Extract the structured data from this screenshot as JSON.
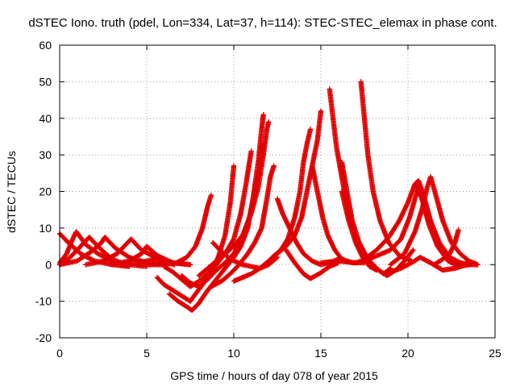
{
  "chart_data": {
    "type": "scatter",
    "title": "dSTEC Iono. truth (pdel, Lon=334, Lat=37, h=114): STEC-STEC_elemax in phase cont.",
    "xlabel": "GPS time / hours of day 078 of year 2015",
    "ylabel": "dSTEC  / TECUs",
    "xlim": [
      0,
      25
    ],
    "ylim": [
      -20,
      60
    ],
    "xticks": [
      0,
      5,
      10,
      15,
      20,
      25
    ],
    "yticks": [
      -20,
      -10,
      0,
      10,
      20,
      30,
      40,
      50,
      60
    ],
    "grid": true,
    "marker": "+",
    "marker_color": "#e00000",
    "arcs": [
      [
        [
          0.0,
          8.5
        ],
        [
          0.5,
          6.0
        ],
        [
          1.2,
          3.0
        ],
        [
          2.0,
          1.0
        ],
        [
          3.0,
          0.0
        ],
        [
          4.0,
          -0.5
        ]
      ],
      [
        [
          0.0,
          0.0
        ],
        [
          0.6,
          2.0
        ],
        [
          1.2,
          5.0
        ],
        [
          1.7,
          7.5
        ],
        [
          2.3,
          4.5
        ],
        [
          3.0,
          1.5
        ],
        [
          3.8,
          0.0
        ]
      ],
      [
        [
          0.0,
          0.5
        ],
        [
          0.4,
          3.0
        ],
        [
          0.7,
          6.5
        ],
        [
          0.95,
          9.0
        ],
        [
          1.5,
          5.5
        ],
        [
          2.2,
          3.0
        ],
        [
          3.0,
          1.0
        ],
        [
          4.0,
          0.0
        ],
        [
          5.0,
          -0.5
        ]
      ],
      [
        [
          0.0,
          0.0
        ],
        [
          1.0,
          1.0
        ],
        [
          1.8,
          3.5
        ],
        [
          2.4,
          6.0
        ],
        [
          2.6,
          7.5
        ],
        [
          3.2,
          4.5
        ],
        [
          4.0,
          2.0
        ],
        [
          5.0,
          0.5
        ],
        [
          6.0,
          0.0
        ]
      ],
      [
        [
          1.5,
          0.0
        ],
        [
          2.5,
          1.0
        ],
        [
          3.3,
          3.0
        ],
        [
          3.8,
          5.5
        ],
        [
          4.1,
          7.0
        ],
        [
          4.7,
          4.0
        ],
        [
          5.5,
          2.0
        ],
        [
          6.5,
          0.5
        ],
        [
          7.5,
          0.0
        ]
      ],
      [
        [
          3.0,
          0.0
        ],
        [
          4.0,
          1.0
        ],
        [
          4.7,
          3.0
        ],
        [
          5.0,
          5.0
        ],
        [
          5.6,
          2.5
        ],
        [
          6.5,
          0.5
        ],
        [
          7.5,
          0.0
        ]
      ],
      [
        [
          3.5,
          0.0
        ],
        [
          4.5,
          0.5
        ],
        [
          5.5,
          1.5
        ],
        [
          6.2,
          0.5
        ],
        [
          6.6,
          0.0
        ]
      ],
      [
        [
          5.0,
          0.0
        ],
        [
          5.8,
          0.0
        ],
        [
          6.7,
          0.5
        ],
        [
          7.3,
          2.0
        ],
        [
          7.8,
          5.0
        ],
        [
          8.2,
          10.0
        ],
        [
          8.5,
          16.0
        ],
        [
          8.7,
          19.0
        ]
      ],
      [
        [
          5.6,
          -3.5
        ],
        [
          6.0,
          -5.5
        ],
        [
          6.5,
          -7.0
        ],
        [
          7.0,
          -8.5
        ],
        [
          7.5,
          -10.0
        ],
        [
          7.8,
          -8.0
        ],
        [
          8.2,
          -5.5
        ],
        [
          8.7,
          -2.0
        ],
        [
          9.1,
          2.0
        ],
        [
          9.5,
          8.0
        ],
        [
          9.8,
          17.0
        ],
        [
          10.0,
          27.0
        ]
      ],
      [
        [
          6.0,
          -0.5
        ],
        [
          6.5,
          -2.0
        ],
        [
          7.0,
          -4.0
        ],
        [
          7.5,
          -6.0
        ],
        [
          8.0,
          -4.5
        ],
        [
          8.5,
          -2.5
        ],
        [
          9.0,
          0.0
        ],
        [
          9.5,
          3.0
        ],
        [
          10.0,
          7.0
        ],
        [
          10.4,
          14.0
        ],
        [
          10.7,
          22.0
        ],
        [
          10.9,
          28.0
        ],
        [
          11.0,
          31.0
        ]
      ],
      [
        [
          6.3,
          -8.0
        ],
        [
          6.8,
          -10.0
        ],
        [
          7.3,
          -11.5
        ],
        [
          7.6,
          -12.5
        ],
        [
          8.0,
          -10.5
        ],
        [
          8.5,
          -7.0
        ],
        [
          9.0,
          -4.0
        ],
        [
          9.5,
          -1.0
        ],
        [
          10.0,
          2.0
        ],
        [
          10.4,
          5.0
        ],
        [
          10.8,
          10.0
        ],
        [
          11.1,
          18.0
        ],
        [
          11.4,
          28.0
        ],
        [
          11.6,
          37.0
        ],
        [
          11.7,
          41.0
        ]
      ],
      [
        [
          7.0,
          -3.0
        ],
        [
          7.5,
          -5.0
        ],
        [
          8.0,
          -6.0
        ],
        [
          8.5,
          -4.0
        ],
        [
          9.0,
          -1.5
        ],
        [
          9.5,
          0.5
        ],
        [
          10.0,
          3.0
        ],
        [
          10.5,
          7.0
        ],
        [
          10.9,
          13.0
        ],
        [
          11.2,
          20.0
        ],
        [
          11.5,
          27.0
        ],
        [
          11.7,
          33.0
        ]
      ],
      [
        [
          8.0,
          -3.0
        ],
        [
          8.5,
          -1.0
        ],
        [
          9.0,
          1.0
        ],
        [
          9.5,
          3.0
        ],
        [
          10.0,
          5.0
        ],
        [
          10.5,
          8.0
        ],
        [
          11.0,
          14.0
        ],
        [
          11.4,
          21.0
        ],
        [
          11.7,
          30.0
        ],
        [
          11.9,
          37.0
        ],
        [
          12.0,
          39.0
        ]
      ],
      [
        [
          8.7,
          -6.0
        ],
        [
          9.3,
          -4.5
        ],
        [
          9.8,
          -2.5
        ],
        [
          10.3,
          0.0
        ],
        [
          10.8,
          3.0
        ],
        [
          11.2,
          6.0
        ],
        [
          11.6,
          10.0
        ],
        [
          11.9,
          18.0
        ],
        [
          12.1,
          24.0
        ],
        [
          12.3,
          27.0
        ]
      ],
      [
        [
          8.8,
          6.0
        ],
        [
          9.3,
          3.5
        ],
        [
          9.8,
          1.5
        ],
        [
          10.5,
          0.0
        ],
        [
          11.0,
          -0.5
        ],
        [
          11.5,
          -1.0
        ],
        [
          12.0,
          0.0
        ],
        [
          12.5,
          2.0
        ]
      ],
      [
        [
          10.0,
          -4.5
        ],
        [
          10.5,
          -3.5
        ],
        [
          11.0,
          -2.5
        ],
        [
          11.5,
          -1.0
        ],
        [
          12.0,
          1.0
        ],
        [
          12.5,
          3.0
        ],
        [
          13.0,
          5.0
        ],
        [
          13.5,
          8.0
        ],
        [
          13.9,
          13.0
        ],
        [
          14.2,
          20.0
        ],
        [
          14.5,
          27.0
        ],
        [
          14.8,
          34.0
        ],
        [
          15.0,
          42.0
        ]
      ],
      [
        [
          12.5,
          18.0
        ],
        [
          12.8,
          14.0
        ],
        [
          13.2,
          10.0
        ],
        [
          13.6,
          6.0
        ],
        [
          14.0,
          3.0
        ],
        [
          14.5,
          1.0
        ],
        [
          15.0,
          0.0
        ],
        [
          15.5,
          0.5
        ],
        [
          16.0,
          1.5
        ]
      ],
      [
        [
          12.2,
          2.0
        ],
        [
          12.7,
          4.0
        ],
        [
          13.1,
          7.0
        ],
        [
          13.5,
          13.0
        ],
        [
          13.8,
          20.0
        ],
        [
          14.0,
          28.0
        ],
        [
          14.2,
          33.0
        ],
        [
          14.4,
          37.0
        ]
      ],
      [
        [
          13.0,
          4.0
        ],
        [
          13.5,
          0.5
        ],
        [
          14.0,
          -2.5
        ],
        [
          14.4,
          -3.8
        ],
        [
          14.9,
          -2.5
        ],
        [
          15.5,
          -0.5
        ],
        [
          16.0,
          0.5
        ]
      ],
      [
        [
          15.5,
          48.0
        ],
        [
          15.7,
          40.0
        ],
        [
          15.9,
          32.0
        ],
        [
          16.2,
          24.0
        ],
        [
          16.5,
          16.0
        ],
        [
          16.9,
          9.0
        ],
        [
          17.3,
          4.0
        ],
        [
          17.8,
          0.5
        ],
        [
          18.3,
          -1.5
        ],
        [
          18.8,
          -3.0
        ],
        [
          19.3,
          -1.5
        ],
        [
          19.8,
          1.0
        ],
        [
          20.3,
          4.0
        ]
      ],
      [
        [
          14.5,
          27.0
        ],
        [
          14.8,
          20.0
        ],
        [
          15.1,
          13.0
        ],
        [
          15.4,
          8.0
        ],
        [
          15.8,
          4.0
        ],
        [
          16.2,
          1.5
        ],
        [
          16.8,
          0.5
        ],
        [
          17.5,
          0.5
        ]
      ],
      [
        [
          16.2,
          28.0
        ],
        [
          16.5,
          20.0
        ],
        [
          16.8,
          12.0
        ],
        [
          17.2,
          6.0
        ],
        [
          17.7,
          1.5
        ],
        [
          18.2,
          -1.0
        ],
        [
          18.6,
          -2.5
        ],
        [
          19.0,
          -1.0
        ]
      ],
      [
        [
          16.2,
          20.0
        ],
        [
          16.6,
          12.0
        ],
        [
          17.0,
          6.0
        ],
        [
          17.4,
          2.0
        ],
        [
          17.8,
          -0.5
        ],
        [
          18.2,
          -1.5
        ]
      ],
      [
        [
          17.3,
          50.0
        ],
        [
          17.5,
          40.0
        ],
        [
          17.7,
          30.0
        ],
        [
          18.0,
          20.0
        ],
        [
          18.4,
          12.0
        ],
        [
          18.9,
          6.0
        ],
        [
          19.5,
          2.5
        ],
        [
          20.2,
          1.0
        ]
      ],
      [
        [
          15.0,
          0.5
        ],
        [
          16.0,
          1.0
        ],
        [
          17.0,
          0.5
        ],
        [
          18.0,
          2.0
        ],
        [
          19.0,
          4.0
        ],
        [
          19.6,
          7.0
        ],
        [
          20.1,
          13.0
        ],
        [
          20.4,
          18.0
        ],
        [
          20.6,
          21.0
        ],
        [
          20.8,
          18.0
        ],
        [
          21.2,
          11.0
        ],
        [
          21.7,
          5.0
        ],
        [
          22.3,
          1.0
        ],
        [
          23.0,
          -0.5
        ]
      ],
      [
        [
          17.5,
          1.5
        ],
        [
          18.2,
          4.0
        ],
        [
          18.9,
          7.5
        ],
        [
          19.5,
          12.0
        ],
        [
          20.0,
          17.0
        ],
        [
          20.4,
          22.0
        ],
        [
          20.6,
          23.0
        ],
        [
          20.9,
          19.0
        ],
        [
          21.3,
          12.0
        ],
        [
          21.8,
          6.0
        ],
        [
          22.4,
          2.0
        ],
        [
          23.0,
          0.5
        ],
        [
          23.6,
          0.0
        ]
      ],
      [
        [
          19.0,
          0.0
        ],
        [
          19.8,
          3.0
        ],
        [
          20.4,
          9.0
        ],
        [
          20.8,
          15.0
        ],
        [
          21.1,
          21.0
        ],
        [
          21.3,
          24.0
        ],
        [
          21.6,
          19.0
        ],
        [
          22.0,
          12.0
        ],
        [
          22.5,
          6.0
        ],
        [
          23.0,
          3.0
        ],
        [
          23.5,
          1.0
        ],
        [
          24.0,
          0.0
        ]
      ],
      [
        [
          20.5,
          22.0
        ],
        [
          20.9,
          17.0
        ],
        [
          21.3,
          11.0
        ],
        [
          21.8,
          5.0
        ],
        [
          22.4,
          1.0
        ],
        [
          23.0,
          -0.5
        ],
        [
          23.5,
          0.0
        ]
      ],
      [
        [
          21.5,
          0.0
        ],
        [
          22.0,
          1.5
        ],
        [
          22.4,
          3.0
        ],
        [
          22.7,
          6.0
        ],
        [
          22.9,
          9.5
        ]
      ],
      [
        [
          19.0,
          -2.0
        ],
        [
          19.6,
          -1.0
        ],
        [
          20.2,
          0.5
        ],
        [
          20.7,
          2.0
        ],
        [
          21.3,
          0.5
        ],
        [
          22.0,
          -1.5
        ],
        [
          22.7,
          -1.0
        ],
        [
          23.3,
          0.0
        ],
        [
          24.0,
          0.0
        ]
      ]
    ]
  }
}
